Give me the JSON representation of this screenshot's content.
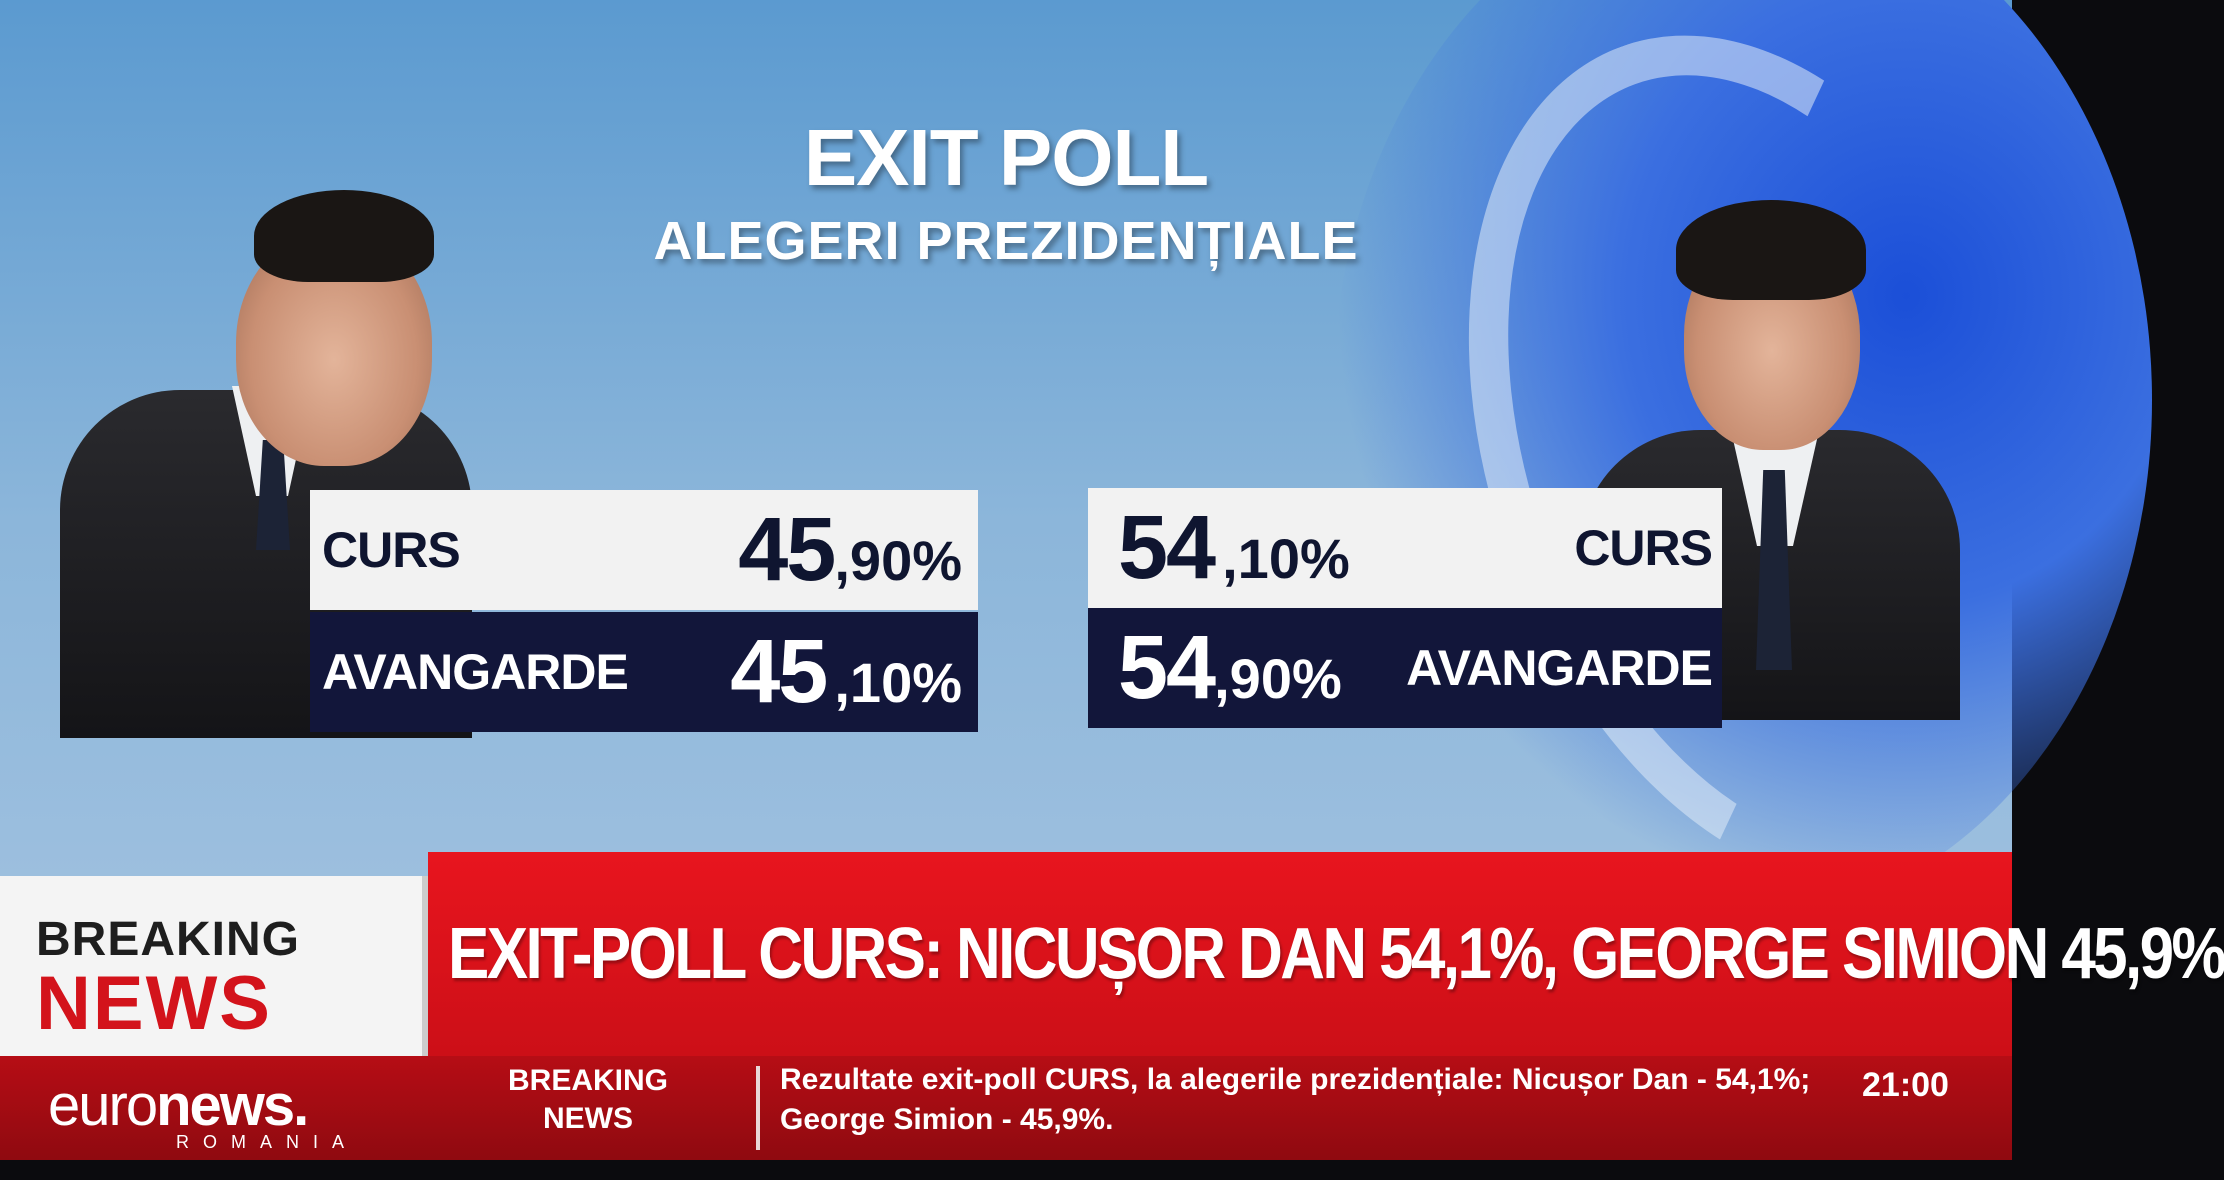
{
  "header": {
    "title": "EXIT POLL",
    "subtitle": "ALEGERI PREZIDENȚIALE"
  },
  "left_candidate": {
    "rows": [
      {
        "label": "CURS",
        "pct_int": "45",
        "pct_dec": ",90%"
      },
      {
        "label": "AVANGARDE",
        "pct_int": "45",
        "pct_dec": ",10%"
      }
    ]
  },
  "right_candidate": {
    "rows": [
      {
        "label": "CURS",
        "pct_int": "54",
        "pct_dec": ",10%"
      },
      {
        "label": "AVANGARDE",
        "pct_int": "54",
        "pct_dec": ",90%"
      }
    ]
  },
  "breaking": {
    "box_line1": "BREAKING",
    "box_line2": "NEWS",
    "headline": "EXIT-POLL CURS: NICUȘOR DAN 54,1%, GEORGE SIMION 45,9%"
  },
  "ticker": {
    "logo_light": "euro",
    "logo_bold": "news.",
    "logo_sub": "ROMANIA",
    "label_line1": "BREAKING",
    "label_line2": "NEWS",
    "text": "Rezultate exit-poll CURS, la alegerile prezidențiale: Nicușor Dan - 54,1%; George Simion - 45,9%.",
    "time": "21:00"
  },
  "colors": {
    "navy": "#12163a",
    "red": "#e8151e",
    "ticker_red": "#b60d15"
  }
}
